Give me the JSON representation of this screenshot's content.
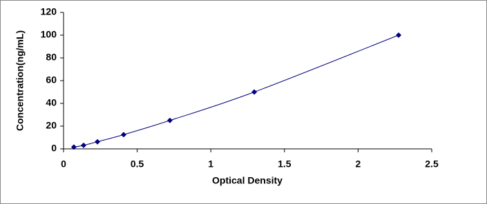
{
  "chart_data": {
    "type": "scatter-line",
    "x": [
      0.07,
      0.136,
      0.23,
      0.408,
      0.722,
      1.295,
      2.275
    ],
    "values": [
      1.56,
      3.12,
      6.25,
      12.5,
      25,
      50,
      100
    ],
    "color": "#000080",
    "xlabel": "Optical Density",
    "ylabel": "Concentration(ng/mL)",
    "xlim": [
      0,
      2.5
    ],
    "xticks": [
      0,
      0.5,
      1,
      1.5,
      2,
      2.5
    ],
    "ylim": [
      0,
      120
    ],
    "yticks": [
      0,
      20,
      40,
      60,
      80,
      100,
      120
    ],
    "grid": false
  }
}
